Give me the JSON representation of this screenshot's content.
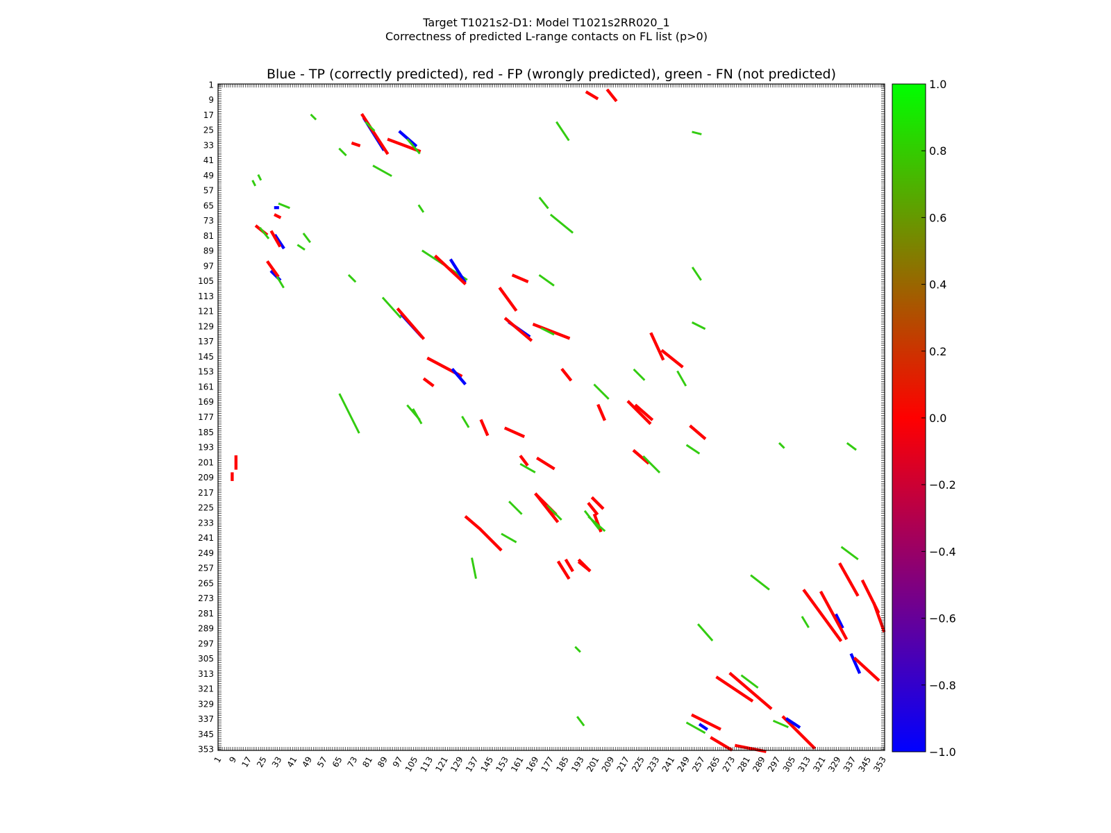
{
  "figure": {
    "title_line1": "Target T1021s2-D1: Model T1021s2RR020_1",
    "title_line2": "Correctness of predicted L-range contacts on FL list (p>0)"
  },
  "chart_data": {
    "type": "heatmap",
    "title": "Blue - TP (correctly predicted), red - FP (wrongly predicted), green - FN (not predicted)",
    "xlabel": "",
    "ylabel": "",
    "residue_range": [
      1,
      353
    ],
    "x_ticks": [
      "1",
      "9",
      "17",
      "25",
      "33",
      "41",
      "49",
      "57",
      "65",
      "73",
      "81",
      "89",
      "97",
      "105",
      "113",
      "121",
      "129",
      "137",
      "145",
      "153",
      "161",
      "169",
      "177",
      "185",
      "193",
      "201",
      "209",
      "217",
      "225",
      "233",
      "241",
      "249",
      "257",
      "265",
      "273",
      "281",
      "289",
      "297",
      "305",
      "313",
      "321",
      "329",
      "337",
      "345",
      "353"
    ],
    "y_ticks": [
      "1",
      "9",
      "17",
      "25",
      "33",
      "41",
      "49",
      "57",
      "65",
      "73",
      "81",
      "89",
      "97",
      "105",
      "113",
      "121",
      "129",
      "137",
      "145",
      "153",
      "161",
      "169",
      "177",
      "185",
      "193",
      "201",
      "209",
      "217",
      "225",
      "233",
      "241",
      "249",
      "257",
      "265",
      "273",
      "281",
      "289",
      "297",
      "305",
      "313",
      "321",
      "329",
      "337",
      "345",
      "353"
    ],
    "colorbar": {
      "min": -1.0,
      "max": 1.0,
      "ticks": [
        "1.0",
        "0.8",
        "0.6",
        "0.4",
        "0.2",
        "0.0",
        "−0.2",
        "−0.4",
        "−0.6",
        "−0.8",
        "−1.0"
      ],
      "colors": [
        "#0000ff",
        "#ff0000",
        "#00ff00"
      ]
    },
    "categories": {
      "tp": "#0000ff",
      "fp": "#ff0000",
      "fn": "#33cc11"
    },
    "contact_segments": [
      {
        "type": "fp",
        "from": [
          10,
          198
        ],
        "to": [
          10,
          204
        ]
      },
      {
        "type": "fp",
        "from": [
          8,
          207
        ],
        "to": [
          8,
          210
        ]
      },
      {
        "type": "fn",
        "from": [
          22,
          49
        ],
        "to": [
          23,
          51
        ]
      },
      {
        "type": "fn",
        "from": [
          19,
          52
        ],
        "to": [
          20,
          54
        ]
      },
      {
        "type": "fp",
        "from": [
          21,
          76
        ],
        "to": [
          26,
          80
        ]
      },
      {
        "type": "fn",
        "from": [
          23,
          77
        ],
        "to": [
          27,
          82
        ]
      },
      {
        "type": "tp",
        "from": [
          31,
          81
        ],
        "to": [
          35,
          87
        ]
      },
      {
        "type": "fp",
        "from": [
          29,
          79
        ],
        "to": [
          33,
          86
        ]
      },
      {
        "type": "fn",
        "from": [
          33,
          64
        ],
        "to": [
          38,
          66
        ]
      },
      {
        "type": "tp",
        "from": [
          31,
          66
        ],
        "to": [
          32,
          66
        ]
      },
      {
        "type": "fp",
        "from": [
          31,
          70
        ],
        "to": [
          33,
          71
        ]
      },
      {
        "type": "fn",
        "from": [
          46,
          80
        ],
        "to": [
          49,
          84
        ]
      },
      {
        "type": "fn",
        "from": [
          43,
          86
        ],
        "to": [
          46,
          88
        ]
      },
      {
        "type": "tp",
        "from": [
          29,
          100
        ],
        "to": [
          33,
          104
        ]
      },
      {
        "type": "fp",
        "from": [
          27,
          95
        ],
        "to": [
          32,
          102
        ]
      },
      {
        "type": "fn",
        "from": [
          32,
          103
        ],
        "to": [
          35,
          108
        ]
      },
      {
        "type": "fn",
        "from": [
          50,
          17
        ],
        "to": [
          52,
          19
        ]
      },
      {
        "type": "fn",
        "from": [
          65,
          35
        ],
        "to": [
          68,
          38
        ]
      },
      {
        "type": "fp",
        "from": [
          72,
          32
        ],
        "to": [
          75,
          33
        ]
      },
      {
        "type": "tp",
        "from": [
          78,
          19
        ],
        "to": [
          88,
          35
        ]
      },
      {
        "type": "fp",
        "from": [
          77,
          17
        ],
        "to": [
          90,
          37
        ]
      },
      {
        "type": "fn",
        "from": [
          79,
          21
        ],
        "to": [
          83,
          25
        ]
      },
      {
        "type": "fn",
        "from": [
          83,
          44
        ],
        "to": [
          92,
          49
        ]
      },
      {
        "type": "fp",
        "from": [
          91,
          30
        ],
        "to": [
          107,
          36
        ]
      },
      {
        "type": "tp",
        "from": [
          97,
          26
        ],
        "to": [
          105,
          33
        ]
      },
      {
        "type": "fn",
        "from": [
          101,
          30
        ],
        "to": [
          107,
          37
        ]
      },
      {
        "type": "fn",
        "from": [
          107,
          65
        ],
        "to": [
          109,
          68
        ]
      },
      {
        "type": "fn",
        "from": [
          70,
          102
        ],
        "to": [
          73,
          105
        ]
      },
      {
        "type": "fn",
        "from": [
          109,
          89
        ],
        "to": [
          132,
          104
        ]
      },
      {
        "type": "tp",
        "from": [
          124,
          94
        ],
        "to": [
          131,
          105
        ]
      },
      {
        "type": "fp",
        "from": [
          116,
          92
        ],
        "to": [
          131,
          106
        ]
      },
      {
        "type": "fn",
        "from": [
          88,
          114
        ],
        "to": [
          97,
          124
        ]
      },
      {
        "type": "tp",
        "from": [
          98,
          123
        ],
        "to": [
          108,
          134
        ]
      },
      {
        "type": "fp",
        "from": [
          96,
          120
        ],
        "to": [
          109,
          135
        ]
      },
      {
        "type": "fp",
        "from": [
          110,
          157
        ],
        "to": [
          114,
          160
        ]
      },
      {
        "type": "fp",
        "from": [
          112,
          146
        ],
        "to": [
          129,
          155
        ]
      },
      {
        "type": "tp",
        "from": [
          125,
          152
        ],
        "to": [
          131,
          159
        ]
      },
      {
        "type": "fn",
        "from": [
          101,
          171
        ],
        "to": [
          107,
          178
        ]
      },
      {
        "type": "fn",
        "from": [
          104,
          173
        ],
        "to": [
          108,
          180
        ]
      },
      {
        "type": "fn",
        "from": [
          65,
          165
        ],
        "to": [
          75,
          185
        ]
      },
      {
        "type": "fp",
        "from": [
          140,
          179
        ],
        "to": [
          143,
          186
        ]
      },
      {
        "type": "fn",
        "from": [
          130,
          177
        ],
        "to": [
          133,
          182
        ]
      },
      {
        "type": "fp",
        "from": [
          157,
          102
        ],
        "to": [
          164,
          105
        ]
      },
      {
        "type": "fp",
        "from": [
          150,
          109
        ],
        "to": [
          158,
          120
        ]
      },
      {
        "type": "tp",
        "from": [
          155,
          127
        ],
        "to": [
          165,
          134
        ]
      },
      {
        "type": "fp",
        "from": [
          153,
          125
        ],
        "to": [
          166,
          136
        ]
      },
      {
        "type": "fp",
        "from": [
          168,
          128
        ],
        "to": [
          186,
          135
        ]
      },
      {
        "type": "fn",
        "from": [
          172,
          130
        ],
        "to": [
          178,
          133
        ]
      },
      {
        "type": "fn",
        "from": [
          171,
          102
        ],
        "to": [
          178,
          107
        ]
      },
      {
        "type": "fn",
        "from": [
          180,
          21
        ],
        "to": [
          186,
          30
        ]
      },
      {
        "type": "fn",
        "from": [
          177,
          70
        ],
        "to": [
          188,
          79
        ]
      },
      {
        "type": "fn",
        "from": [
          171,
          61
        ],
        "to": [
          175,
          66
        ]
      },
      {
        "type": "fp",
        "from": [
          183,
          152
        ],
        "to": [
          187,
          157
        ]
      },
      {
        "type": "fp",
        "from": [
          153,
          183
        ],
        "to": [
          162,
          187
        ]
      },
      {
        "type": "fp",
        "from": [
          161,
          198
        ],
        "to": [
          164,
          202
        ]
      },
      {
        "type": "fn",
        "from": [
          161,
          202
        ],
        "to": [
          168,
          206
        ]
      },
      {
        "type": "fp",
        "from": [
          170,
          199
        ],
        "to": [
          178,
          204
        ]
      },
      {
        "type": "fp",
        "from": [
          169,
          218
        ],
        "to": [
          179,
          228
        ]
      },
      {
        "type": "fn",
        "from": [
          175,
          224
        ],
        "to": [
          182,
          231
        ]
      },
      {
        "type": "fp",
        "from": [
          185,
          253
        ],
        "to": [
          188,
          258
        ]
      },
      {
        "type": "fp",
        "from": [
          192,
          254
        ],
        "to": [
          197,
          258
        ]
      },
      {
        "type": "fp",
        "from": [
          200,
          229
        ],
        "to": [
          203,
          237
        ]
      },
      {
        "type": "fn",
        "from": [
          195,
          227
        ],
        "to": [
          202,
          236
        ]
      },
      {
        "type": "fp",
        "from": [
          199,
          220
        ],
        "to": [
          204,
          225
        ]
      },
      {
        "type": "fn",
        "from": [
          200,
          160
        ],
        "to": [
          207,
          167
        ]
      },
      {
        "type": "fp",
        "from": [
          202,
          171
        ],
        "to": [
          205,
          178
        ]
      },
      {
        "type": "fp",
        "from": [
          218,
          169
        ],
        "to": [
          229,
          180
        ]
      },
      {
        "type": "fp",
        "from": [
          222,
          171
        ],
        "to": [
          230,
          178
        ]
      },
      {
        "type": "fn",
        "from": [
          221,
          152
        ],
        "to": [
          226,
          157
        ]
      },
      {
        "type": "fp",
        "from": [
          230,
          133
        ],
        "to": [
          236,
          146
        ]
      },
      {
        "type": "fp",
        "from": [
          236,
          142
        ],
        "to": [
          246,
          150
        ]
      },
      {
        "type": "fn",
        "from": [
          244,
          153
        ],
        "to": [
          248,
          160
        ]
      },
      {
        "type": "fp",
        "from": [
          251,
          182
        ],
        "to": [
          258,
          188
        ]
      },
      {
        "type": "fn",
        "from": [
          249,
          192
        ],
        "to": [
          255,
          196
        ]
      },
      {
        "type": "fp",
        "from": [
          221,
          195
        ],
        "to": [
          228,
          201
        ]
      },
      {
        "type": "fn",
        "from": [
          226,
          198
        ],
        "to": [
          234,
          206
        ]
      },
      {
        "type": "fp",
        "from": [
          132,
          230
        ],
        "to": [
          139,
          236
        ]
      },
      {
        "type": "fp",
        "from": [
          140,
          237
        ],
        "to": [
          150,
          247
        ]
      },
      {
        "type": "fn",
        "from": [
          151,
          239
        ],
        "to": [
          158,
          243
        ]
      },
      {
        "type": "fn",
        "from": [
          155,
          222
        ],
        "to": [
          161,
          228
        ]
      },
      {
        "type": "fp",
        "from": [
          169,
          218
        ],
        "to": [
          180,
          232
        ]
      },
      {
        "type": "fp",
        "from": [
          197,
          223
        ],
        "to": [
          201,
          228
        ]
      },
      {
        "type": "fn",
        "from": [
          197,
          230
        ],
        "to": [
          205,
          237
        ]
      },
      {
        "type": "fp",
        "from": [
          181,
          254
        ],
        "to": [
          186,
          262
        ]
      },
      {
        "type": "fp",
        "from": [
          192,
          253
        ],
        "to": [
          197,
          258
        ]
      },
      {
        "type": "fn",
        "from": [
          135,
          252
        ],
        "to": [
          137,
          262
        ]
      },
      {
        "type": "fp",
        "from": [
          311,
          269
        ],
        "to": [
          330,
          295
        ]
      },
      {
        "type": "tp",
        "from": [
          328,
          282
        ],
        "to": [
          331,
          288
        ]
      },
      {
        "type": "fp",
        "from": [
          320,
          270
        ],
        "to": [
          333,
          294
        ]
      },
      {
        "type": "fn",
        "from": [
          310,
          283
        ],
        "to": [
          313,
          288
        ]
      },
      {
        "type": "fp",
        "from": [
          330,
          255
        ],
        "to": [
          339,
          271
        ]
      },
      {
        "type": "fp",
        "from": [
          342,
          264
        ],
        "to": [
          350,
          280
        ]
      },
      {
        "type": "fp",
        "from": [
          348,
          276
        ],
        "to": [
          353,
          290
        ]
      },
      {
        "type": "tp",
        "from": [
          336,
          303
        ],
        "to": [
          340,
          312
        ]
      },
      {
        "type": "fp",
        "from": [
          338,
          305
        ],
        "to": [
          350,
          316
        ]
      },
      {
        "type": "fp",
        "from": [
          272,
          313
        ],
        "to": [
          293,
          331
        ]
      },
      {
        "type": "fp",
        "from": [
          265,
          315
        ],
        "to": [
          283,
          327
        ]
      },
      {
        "type": "fn",
        "from": [
          278,
          314
        ],
        "to": [
          286,
          320
        ]
      },
      {
        "type": "fp",
        "from": [
          252,
          335
        ],
        "to": [
          266,
          342
        ]
      },
      {
        "type": "tp",
        "from": [
          256,
          340
        ],
        "to": [
          259,
          342
        ]
      },
      {
        "type": "fn",
        "from": [
          249,
          339
        ],
        "to": [
          258,
          344
        ]
      },
      {
        "type": "fp",
        "from": [
          262,
          347
        ],
        "to": [
          272,
          353
        ]
      },
      {
        "type": "fp",
        "from": [
          275,
          351
        ],
        "to": [
          290,
          354
        ]
      },
      {
        "type": "fp",
        "from": [
          300,
          336
        ],
        "to": [
          316,
          352
        ]
      },
      {
        "type": "tp",
        "from": [
          302,
          337
        ],
        "to": [
          308,
          341
        ]
      },
      {
        "type": "fn",
        "from": [
          295,
          338
        ],
        "to": [
          302,
          341
        ]
      },
      {
        "type": "fn",
        "from": [
          255,
          287
        ],
        "to": [
          262,
          295
        ]
      },
      {
        "type": "fn",
        "from": [
          283,
          261
        ],
        "to": [
          292,
          268
        ]
      },
      {
        "type": "fn",
        "from": [
          298,
          191
        ],
        "to": [
          300,
          193
        ]
      },
      {
        "type": "fn",
        "from": [
          334,
          191
        ],
        "to": [
          338,
          194
        ]
      },
      {
        "type": "fn",
        "from": [
          331,
          246
        ],
        "to": [
          339,
          252
        ]
      },
      {
        "type": "fn",
        "from": [
          190,
          299
        ],
        "to": [
          192,
          301
        ]
      },
      {
        "type": "fn",
        "from": [
          191,
          336
        ],
        "to": [
          194,
          340
        ]
      },
      {
        "type": "fn",
        "from": [
          252,
          26
        ],
        "to": [
          256,
          27
        ]
      },
      {
        "type": "fn",
        "from": [
          252,
          98
        ],
        "to": [
          256,
          104
        ]
      },
      {
        "type": "fn",
        "from": [
          252,
          127
        ],
        "to": [
          258,
          130
        ]
      },
      {
        "type": "fp",
        "from": [
          196,
          5
        ],
        "to": [
          201,
          8
        ]
      },
      {
        "type": "fp",
        "from": [
          207,
          4
        ],
        "to": [
          211,
          9
        ]
      }
    ]
  }
}
